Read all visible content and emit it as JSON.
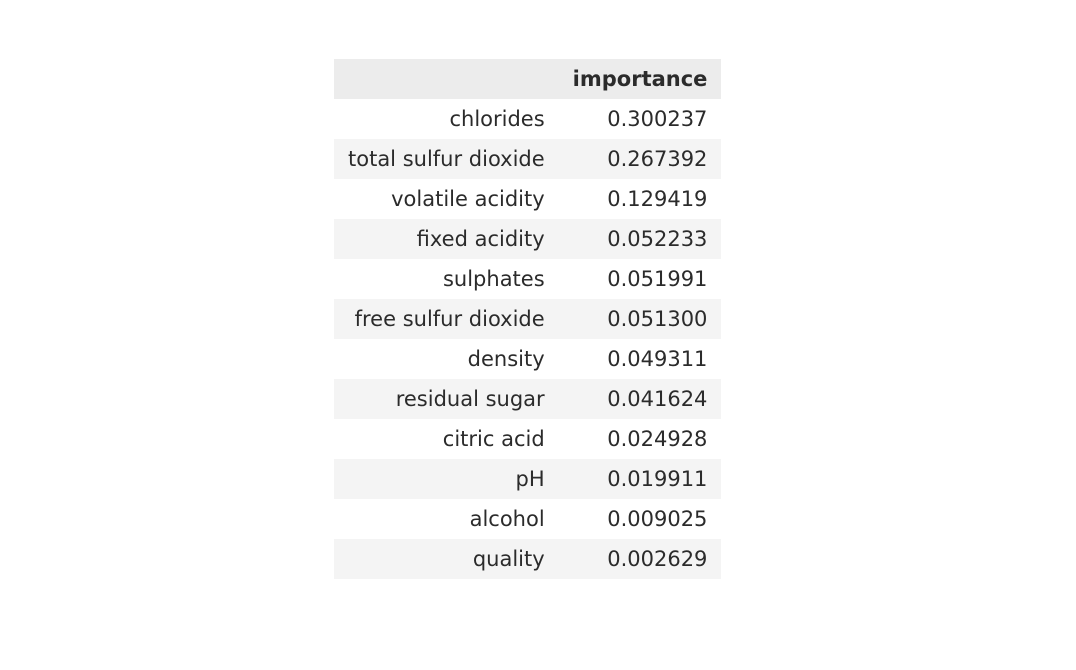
{
  "table": {
    "index_header": "",
    "columns": [
      "importance"
    ],
    "rows": [
      {
        "label": "chlorides",
        "importance": "0.300237"
      },
      {
        "label": "total sulfur dioxide",
        "importance": "0.267392"
      },
      {
        "label": "volatile acidity",
        "importance": "0.129419"
      },
      {
        "label": "fixed acidity",
        "importance": "0.052233"
      },
      {
        "label": "sulphates",
        "importance": "0.051991"
      },
      {
        "label": "free sulfur dioxide",
        "importance": "0.051300"
      },
      {
        "label": "density",
        "importance": "0.049311"
      },
      {
        "label": "residual sugar",
        "importance": "0.041624"
      },
      {
        "label": "citric acid",
        "importance": "0.024928"
      },
      {
        "label": "pH",
        "importance": "0.019911"
      },
      {
        "label": "alcohol",
        "importance": "0.009025"
      },
      {
        "label": "quality",
        "importance": "0.002629"
      }
    ]
  },
  "colors": {
    "header_bg": "#ececec",
    "stripe_bg": "#f4f4f4",
    "text": "#2b2b2b"
  }
}
